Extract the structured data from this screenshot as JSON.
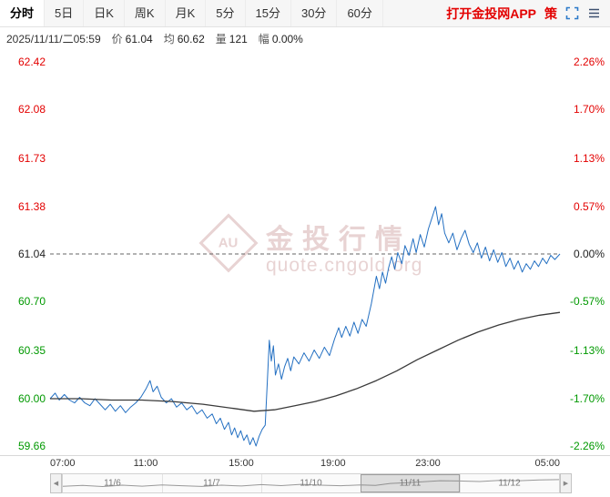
{
  "palette": {
    "up": "#e30000",
    "down": "#009900",
    "flat": "#222222",
    "price_line": "#2470c2",
    "avg_line": "#3a3a3a",
    "accent_blue": "#2c7ac9",
    "link_red": "#e30000"
  },
  "toolbar": {
    "tabs": [
      "分时",
      "5日",
      "日K",
      "周K",
      "月K",
      "5分",
      "15分",
      "30分",
      "60分"
    ],
    "active_tab": "分时",
    "app_link": "打开金投网APP",
    "strategy": "策"
  },
  "infobar": {
    "datetime": "2025/11/11/二05:59",
    "fields": [
      {
        "label": "价",
        "value": "61.04"
      },
      {
        "label": "均",
        "value": "60.62"
      },
      {
        "label": "量",
        "value": "121"
      },
      {
        "label": "幅",
        "value": "0.00%"
      }
    ]
  },
  "watermark": {
    "logo": "AU",
    "title": "金投行情",
    "subtitle": "quote.cngold.org"
  },
  "chart_data": {
    "type": "line",
    "title": "白银 分时走势 (intraday line)",
    "ylim": [
      59.66,
      62.42
    ],
    "base_price": 61.04,
    "avg_price": 60.62,
    "grid": false,
    "y_axis_left": [
      {
        "text": "62.42",
        "value": 62.42,
        "tone": "up"
      },
      {
        "text": "62.08",
        "value": 62.08,
        "tone": "up"
      },
      {
        "text": "61.73",
        "value": 61.73,
        "tone": "up"
      },
      {
        "text": "61.38",
        "value": 61.38,
        "tone": "up"
      },
      {
        "text": "61.04",
        "value": 61.04,
        "tone": "flat"
      },
      {
        "text": "60.70",
        "value": 60.7,
        "tone": "down"
      },
      {
        "text": "60.35",
        "value": 60.35,
        "tone": "down"
      },
      {
        "text": "60.00",
        "value": 60.0,
        "tone": "down"
      },
      {
        "text": "59.66",
        "value": 59.66,
        "tone": "down"
      }
    ],
    "y_axis_right": [
      {
        "text": "2.26%",
        "value": 62.42,
        "tone": "up"
      },
      {
        "text": "1.70%",
        "value": 62.08,
        "tone": "up"
      },
      {
        "text": "1.13%",
        "value": 61.73,
        "tone": "up"
      },
      {
        "text": "0.57%",
        "value": 61.38,
        "tone": "up"
      },
      {
        "text": "0.00%",
        "value": 61.04,
        "tone": "flat"
      },
      {
        "text": "-0.57%",
        "value": 60.7,
        "tone": "down"
      },
      {
        "text": "-1.13%",
        "value": 60.35,
        "tone": "down"
      },
      {
        "text": "-1.70%",
        "value": 60.0,
        "tone": "down"
      },
      {
        "text": "-2.26%",
        "value": 59.66,
        "tone": "down"
      }
    ],
    "x_axis": [
      {
        "text": "07:00",
        "pos": 0,
        "align": "left"
      },
      {
        "text": "11:00",
        "pos": 0.1875,
        "align": "center"
      },
      {
        "text": "15:00",
        "pos": 0.375,
        "align": "center"
      },
      {
        "text": "19:00",
        "pos": 0.555,
        "align": "center"
      },
      {
        "text": "23:00",
        "pos": 0.741,
        "align": "center"
      },
      {
        "text": "05:00",
        "pos": 1,
        "align": "right"
      }
    ],
    "series": [
      {
        "name": "price",
        "color": "#2470c2",
        "width": 1,
        "points": [
          [
            0,
            60.0
          ],
          [
            0.01,
            60.04
          ],
          [
            0.018,
            59.99
          ],
          [
            0.028,
            60.03
          ],
          [
            0.038,
            59.99
          ],
          [
            0.048,
            59.97
          ],
          [
            0.058,
            60.01
          ],
          [
            0.068,
            59.97
          ],
          [
            0.078,
            59.95
          ],
          [
            0.088,
            60.0
          ],
          [
            0.098,
            59.96
          ],
          [
            0.108,
            59.92
          ],
          [
            0.118,
            59.96
          ],
          [
            0.128,
            59.91
          ],
          [
            0.138,
            59.95
          ],
          [
            0.148,
            59.9
          ],
          [
            0.158,
            59.94
          ],
          [
            0.168,
            59.97
          ],
          [
            0.178,
            60.01
          ],
          [
            0.188,
            60.07
          ],
          [
            0.196,
            60.13
          ],
          [
            0.202,
            60.05
          ],
          [
            0.21,
            60.09
          ],
          [
            0.218,
            60.01
          ],
          [
            0.228,
            59.97
          ],
          [
            0.238,
            60.0
          ],
          [
            0.248,
            59.94
          ],
          [
            0.258,
            59.97
          ],
          [
            0.268,
            59.92
          ],
          [
            0.278,
            59.95
          ],
          [
            0.288,
            59.89
          ],
          [
            0.298,
            59.92
          ],
          [
            0.308,
            59.86
          ],
          [
            0.318,
            59.89
          ],
          [
            0.326,
            59.82
          ],
          [
            0.334,
            59.86
          ],
          [
            0.342,
            59.78
          ],
          [
            0.35,
            59.83
          ],
          [
            0.356,
            59.74
          ],
          [
            0.362,
            59.79
          ],
          [
            0.368,
            59.72
          ],
          [
            0.374,
            59.77
          ],
          [
            0.38,
            59.7
          ],
          [
            0.386,
            59.74
          ],
          [
            0.392,
            59.67
          ],
          [
            0.398,
            59.72
          ],
          [
            0.404,
            59.66
          ],
          [
            0.41,
            59.73
          ],
          [
            0.416,
            59.78
          ],
          [
            0.422,
            59.81
          ],
          [
            0.426,
            60.12
          ],
          [
            0.43,
            60.42
          ],
          [
            0.434,
            60.27
          ],
          [
            0.438,
            60.38
          ],
          [
            0.442,
            60.17
          ],
          [
            0.448,
            60.25
          ],
          [
            0.454,
            60.14
          ],
          [
            0.46,
            60.23
          ],
          [
            0.466,
            60.29
          ],
          [
            0.472,
            60.2
          ],
          [
            0.478,
            60.3
          ],
          [
            0.488,
            60.25
          ],
          [
            0.498,
            60.33
          ],
          [
            0.508,
            60.27
          ],
          [
            0.518,
            60.35
          ],
          [
            0.528,
            60.29
          ],
          [
            0.538,
            60.37
          ],
          [
            0.548,
            60.31
          ],
          [
            0.558,
            60.43
          ],
          [
            0.566,
            60.51
          ],
          [
            0.572,
            60.44
          ],
          [
            0.58,
            60.52
          ],
          [
            0.588,
            60.45
          ],
          [
            0.596,
            60.55
          ],
          [
            0.604,
            60.47
          ],
          [
            0.612,
            60.57
          ],
          [
            0.62,
            60.52
          ],
          [
            0.63,
            60.68
          ],
          [
            0.64,
            60.88
          ],
          [
            0.646,
            60.79
          ],
          [
            0.652,
            60.91
          ],
          [
            0.658,
            60.83
          ],
          [
            0.664,
            60.94
          ],
          [
            0.67,
            61.02
          ],
          [
            0.676,
            60.93
          ],
          [
            0.682,
            61.05
          ],
          [
            0.69,
            60.97
          ],
          [
            0.696,
            61.1
          ],
          [
            0.704,
            61.03
          ],
          [
            0.712,
            61.15
          ],
          [
            0.718,
            61.05
          ],
          [
            0.726,
            61.18
          ],
          [
            0.734,
            61.09
          ],
          [
            0.742,
            61.22
          ],
          [
            0.75,
            61.31
          ],
          [
            0.756,
            61.38
          ],
          [
            0.762,
            61.25
          ],
          [
            0.768,
            61.33
          ],
          [
            0.774,
            61.19
          ],
          [
            0.782,
            61.12
          ],
          [
            0.79,
            61.19
          ],
          [
            0.798,
            61.07
          ],
          [
            0.806,
            61.15
          ],
          [
            0.814,
            61.21
          ],
          [
            0.822,
            61.11
          ],
          [
            0.83,
            61.05
          ],
          [
            0.838,
            61.12
          ],
          [
            0.846,
            61.01
          ],
          [
            0.854,
            61.09
          ],
          [
            0.862,
            60.99
          ],
          [
            0.87,
            61.07
          ],
          [
            0.878,
            60.98
          ],
          [
            0.886,
            61.05
          ],
          [
            0.894,
            60.95
          ],
          [
            0.902,
            61.01
          ],
          [
            0.91,
            60.93
          ],
          [
            0.918,
            60.99
          ],
          [
            0.926,
            60.91
          ],
          [
            0.934,
            60.97
          ],
          [
            0.942,
            60.93
          ],
          [
            0.95,
            60.99
          ],
          [
            0.958,
            60.95
          ],
          [
            0.966,
            61.01
          ],
          [
            0.974,
            60.97
          ],
          [
            0.982,
            61.03
          ],
          [
            0.99,
            61.0
          ],
          [
            1,
            61.04
          ]
        ]
      },
      {
        "name": "average",
        "color": "#3a3a3a",
        "width": 1.3,
        "points": [
          [
            0,
            60.0
          ],
          [
            0.06,
            60.0
          ],
          [
            0.12,
            59.99
          ],
          [
            0.18,
            59.99
          ],
          [
            0.24,
            59.98
          ],
          [
            0.3,
            59.96
          ],
          [
            0.36,
            59.93
          ],
          [
            0.4,
            59.91
          ],
          [
            0.44,
            59.92
          ],
          [
            0.48,
            59.95
          ],
          [
            0.52,
            59.98
          ],
          [
            0.56,
            60.02
          ],
          [
            0.6,
            60.07
          ],
          [
            0.64,
            60.13
          ],
          [
            0.68,
            60.2
          ],
          [
            0.72,
            60.28
          ],
          [
            0.76,
            60.35
          ],
          [
            0.8,
            60.42
          ],
          [
            0.84,
            60.48
          ],
          [
            0.88,
            60.53
          ],
          [
            0.92,
            60.57
          ],
          [
            0.96,
            60.6
          ],
          [
            1,
            60.62
          ]
        ]
      }
    ]
  },
  "navigator": {
    "dates": [
      "11/6",
      "11/7",
      "11/10",
      "11/11",
      "11/12"
    ],
    "selection": [
      0.6,
      0.8
    ],
    "spark": [
      [
        0,
        0.32
      ],
      [
        0.04,
        0.38
      ],
      [
        0.08,
        0.3
      ],
      [
        0.12,
        0.4
      ],
      [
        0.16,
        0.33
      ],
      [
        0.2,
        0.42
      ],
      [
        0.24,
        0.36
      ],
      [
        0.28,
        0.31
      ],
      [
        0.32,
        0.4
      ],
      [
        0.36,
        0.34
      ],
      [
        0.4,
        0.44
      ],
      [
        0.44,
        0.37
      ],
      [
        0.48,
        0.45
      ],
      [
        0.52,
        0.4
      ],
      [
        0.56,
        0.36
      ],
      [
        0.6,
        0.42
      ],
      [
        0.63,
        0.38
      ],
      [
        0.66,
        0.52
      ],
      [
        0.7,
        0.58
      ],
      [
        0.73,
        0.65
      ],
      [
        0.76,
        0.72
      ],
      [
        0.8,
        0.7
      ],
      [
        0.84,
        0.66
      ],
      [
        0.88,
        0.74
      ],
      [
        0.92,
        0.71
      ],
      [
        0.96,
        0.77
      ],
      [
        1,
        0.8
      ]
    ]
  }
}
